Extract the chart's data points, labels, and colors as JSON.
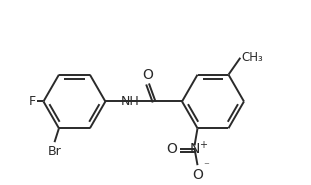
{
  "bg_color": "#ffffff",
  "line_color": "#2a2a2a",
  "text_color": "#2a2a2a",
  "lw": 1.4,
  "figsize": [
    3.11,
    1.85
  ],
  "dpi": 100,
  "xlim": [
    0.0,
    10.5
  ],
  "ylim": [
    0.3,
    6.2
  ]
}
